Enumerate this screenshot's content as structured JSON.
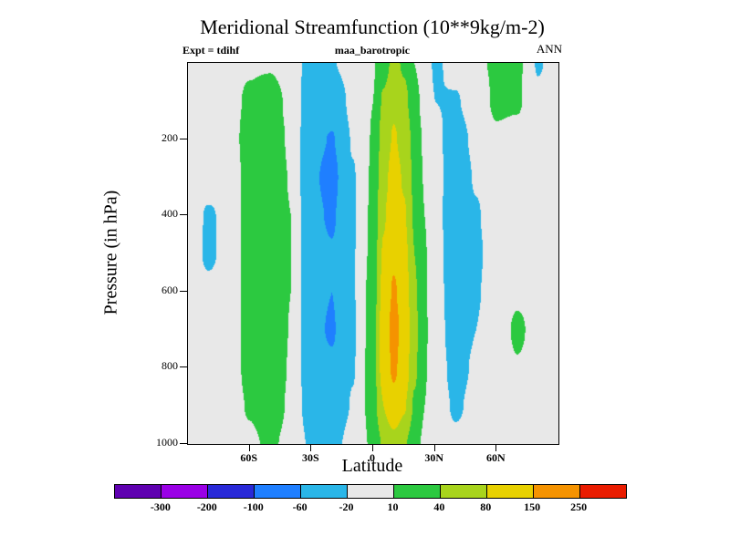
{
  "title": "Meridional Streamfunction (10**9kg/m-2)",
  "header": {
    "experiment": "Expt = tdihf",
    "dataset": "maa_barotropic",
    "season": "ANN"
  },
  "axes": {
    "y_label": "Pressure (in hPa)",
    "x_label": "Latitude",
    "y_ticks": [
      {
        "label": "200",
        "value": 200
      },
      {
        "label": "400",
        "value": 400
      },
      {
        "label": "600",
        "value": 600
      },
      {
        "label": "800",
        "value": 800
      },
      {
        "label": "1000",
        "value": 1000
      }
    ],
    "x_ticks": [
      {
        "label": "60S",
        "value": -60
      },
      {
        "label": "30S",
        "value": -30
      },
      {
        "label": "0",
        "value": 0
      },
      {
        "label": "30N",
        "value": 30
      },
      {
        "label": "60N",
        "value": 60
      }
    ]
  },
  "colorbar": {
    "labels": [
      "-300",
      "-200",
      "-100",
      "-60",
      "-20",
      "10",
      "40",
      "80",
      "150",
      "250"
    ]
  },
  "chart_data": {
    "type": "heatmap",
    "title": "Meridional Streamfunction (10**9kg/m-2)",
    "xlabel": "Latitude",
    "ylabel": "Pressure (in hPa)",
    "x_range": [
      -90,
      90
    ],
    "y_range": [
      0,
      1000
    ],
    "y_inverted": true,
    "legend_position": "bottom",
    "grid": false,
    "levels": [
      -300,
      -200,
      -100,
      -60,
      -20,
      10,
      40,
      80,
      150,
      250
    ],
    "colors": [
      "#5f00b0",
      "#9a00e6",
      "#2929d8",
      "#1f7fff",
      "#2ab6e8",
      "#e8e8e8",
      "#2cc940",
      "#a8d41c",
      "#e8d100",
      "#f59300",
      "#ea1c00"
    ],
    "background": "#e8e8e8",
    "x_lat": [
      -90,
      -80,
      -70,
      -60,
      -50,
      -40,
      -30,
      -20,
      -10,
      0,
      5,
      10,
      15,
      20,
      25,
      30,
      40,
      50,
      60,
      70,
      80,
      90
    ],
    "y_pressure": [
      0,
      100,
      200,
      300,
      400,
      500,
      600,
      700,
      800,
      900,
      1000
    ],
    "values": [
      [
        0,
        0,
        0,
        6,
        6,
        -10,
        -28,
        -22,
        -5,
        8,
        25,
        50,
        35,
        10,
        -5,
        -24,
        -12,
        5,
        14,
        16,
        -22,
        -10
      ],
      [
        0,
        0,
        0,
        15,
        28,
        0,
        -40,
        -45,
        -12,
        10,
        45,
        70,
        50,
        20,
        0,
        -20,
        -22,
        -8,
        16,
        14,
        -15,
        -5
      ],
      [
        0,
        0,
        0,
        20,
        30,
        5,
        -50,
        -62,
        -18,
        12,
        55,
        85,
        65,
        28,
        5,
        -15,
        -30,
        -15,
        5,
        0,
        -5,
        0
      ],
      [
        0,
        -3,
        -8,
        22,
        32,
        8,
        -55,
        -70,
        -22,
        14,
        65,
        100,
        75,
        32,
        8,
        -12,
        -35,
        -18,
        -5,
        0,
        0,
        0
      ],
      [
        0,
        -24,
        -10,
        22,
        32,
        10,
        -52,
        -64,
        -22,
        16,
        75,
        115,
        85,
        36,
        10,
        -10,
        -40,
        -22,
        -6,
        0,
        0,
        0
      ],
      [
        0,
        -26,
        -8,
        22,
        31,
        10,
        -48,
        -58,
        -22,
        18,
        85,
        135,
        95,
        40,
        12,
        -8,
        -42,
        -24,
        -8,
        0,
        0,
        0
      ],
      [
        0,
        -12,
        -5,
        20,
        30,
        10,
        -50,
        -60,
        -22,
        22,
        95,
        160,
        110,
        45,
        12,
        -6,
        -40,
        -22,
        -8,
        5,
        0,
        0
      ],
      [
        0,
        0,
        -3,
        18,
        29,
        9,
        -52,
        -63,
        -24,
        25,
        105,
        180,
        120,
        50,
        14,
        -5,
        -36,
        -20,
        -6,
        15,
        0,
        0
      ],
      [
        0,
        0,
        0,
        16,
        27,
        8,
        -48,
        -56,
        -22,
        26,
        100,
        165,
        110,
        46,
        12,
        -4,
        -30,
        -16,
        -4,
        8,
        0,
        0
      ],
      [
        0,
        0,
        0,
        12,
        24,
        6,
        -40,
        -46,
        -18,
        24,
        80,
        120,
        85,
        36,
        10,
        -3,
        -24,
        -12,
        -2,
        0,
        0,
        0
      ],
      [
        0,
        0,
        0,
        6,
        14,
        3,
        -26,
        -30,
        -10,
        15,
        45,
        60,
        45,
        20,
        5,
        0,
        -14,
        -6,
        0,
        0,
        0,
        0
      ]
    ]
  }
}
